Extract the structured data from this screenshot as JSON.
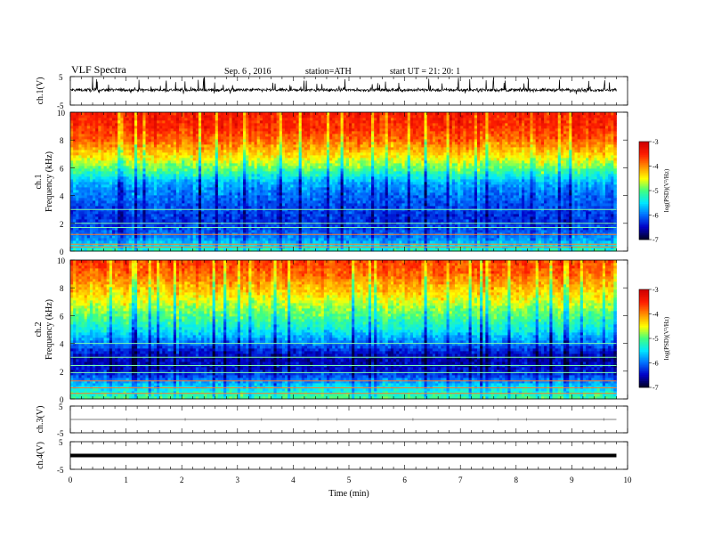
{
  "header": {
    "title": "VLF Spectra",
    "date": "Sep. 6 , 2016",
    "station": "station=ATH",
    "start": "start UT = 21: 20: 1"
  },
  "colors": {
    "scale": [
      "#00002a",
      "#0000c8",
      "#0070ff",
      "#00e8ff",
      "#40ff80",
      "#ffff00",
      "#ff9000",
      "#ff1e00",
      "#d00000"
    ]
  },
  "chart_data": [
    {
      "type": "line",
      "ylabel": "ch.1(V)",
      "ylim": [
        -5,
        5
      ],
      "yticks": [
        "5",
        "-5"
      ],
      "xlim": [
        0,
        10
      ],
      "description_values": {
        "mean": 0,
        "noise_band": [
          -2,
          3
        ]
      }
    },
    {
      "type": "heatmap",
      "ylabel_channel": "ch.1",
      "ylabel": "Frequency (kHz)",
      "ylim": [
        0,
        10
      ],
      "yticks": [
        "0",
        "2",
        "4",
        "6",
        "8",
        "10"
      ],
      "xlim": [
        0,
        10
      ],
      "data_end_min": 9.8,
      "colorbar": {
        "label": "log(PSD)(V²/Hz)",
        "ticks": [
          "-3",
          "-4",
          "-5",
          "-6",
          "-7"
        ],
        "range": [
          -7,
          -3
        ]
      },
      "profile_khz_logpsd": [
        [
          0,
          -5.2
        ],
        [
          1,
          -5.9
        ],
        [
          2,
          -6.3
        ],
        [
          3,
          -6.2
        ],
        [
          4,
          -6.0
        ],
        [
          5,
          -5.7
        ],
        [
          6,
          -4.9
        ],
        [
          7,
          -4.3
        ],
        [
          8,
          -3.8
        ],
        [
          9,
          -3.5
        ],
        [
          10,
          -3.4
        ]
      ],
      "tones_khz": [
        0.3,
        0.5,
        1.2,
        1.7,
        2.0,
        3.0
      ]
    },
    {
      "type": "heatmap",
      "ylabel_channel": "ch.2",
      "ylabel": "Frequency (kHz)",
      "ylim": [
        0,
        10
      ],
      "yticks": [
        "0",
        "2",
        "4",
        "6",
        "8",
        "10"
      ],
      "xlim": [
        0,
        10
      ],
      "data_end_min": 9.8,
      "colorbar": {
        "label": "log(PSD)(V²/Hz)",
        "ticks": [
          "-3",
          "-4",
          "-5",
          "-6",
          "-7"
        ],
        "range": [
          -7,
          -3
        ]
      },
      "profile_khz_logpsd": [
        [
          0,
          -5.0
        ],
        [
          1,
          -5.6
        ],
        [
          2,
          -6.4
        ],
        [
          3,
          -6.6
        ],
        [
          4,
          -6.0
        ],
        [
          5,
          -5.4
        ],
        [
          6,
          -5.0
        ],
        [
          7,
          -4.6
        ],
        [
          8,
          -4.2
        ],
        [
          9,
          -3.8
        ],
        [
          10,
          -3.6
        ]
      ],
      "tones_khz": [
        0.4,
        0.8,
        1.3,
        1.9,
        2.4,
        3.0,
        4.0
      ]
    },
    {
      "type": "line",
      "ylabel": "ch.3(V)",
      "ylim": [
        -5,
        5
      ],
      "yticks": [
        "5",
        "-5"
      ],
      "xlim": [
        0,
        10
      ],
      "level": 0
    },
    {
      "type": "line",
      "ylabel": "ch.4(V)",
      "ylim": [
        -5,
        5
      ],
      "yticks": [
        "5",
        "-5"
      ],
      "xlim": [
        0,
        10
      ],
      "level": 0
    }
  ],
  "xaxis": {
    "label": "Time (min)",
    "ticks": [
      "0",
      "1",
      "2",
      "3",
      "4",
      "5",
      "6",
      "7",
      "8",
      "9",
      "10"
    ]
  }
}
